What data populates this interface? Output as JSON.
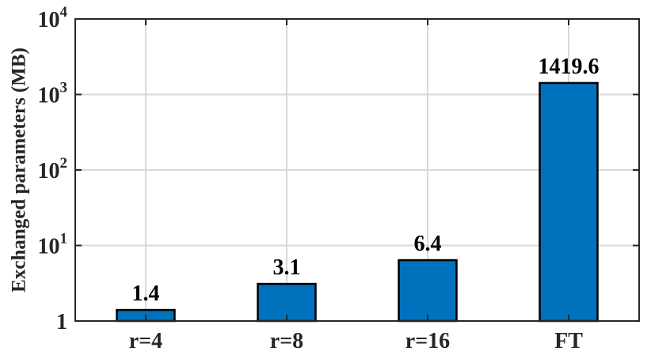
{
  "chart_data": {
    "type": "bar",
    "categories": [
      "r=4",
      "r=8",
      "r=16",
      "FT"
    ],
    "values": [
      1.4,
      3.1,
      6.4,
      1419.6
    ],
    "data_labels": [
      "1.4",
      "3.1",
      "6.4",
      "1419.6"
    ],
    "title": "",
    "xlabel": "",
    "ylabel": "Exchanged parameters (MB)",
    "yscale": "log",
    "ylim": [
      1,
      10000
    ],
    "y_ticks": [
      {
        "value": 1,
        "base": "1",
        "exp": ""
      },
      {
        "value": 10,
        "base": "10",
        "exp": "1"
      },
      {
        "value": 100,
        "base": "10",
        "exp": "2"
      },
      {
        "value": 1000,
        "base": "10",
        "exp": "3"
      },
      {
        "value": 10000,
        "base": "10",
        "exp": "4"
      }
    ],
    "grid": true,
    "legend": "none",
    "bar_color": "#0072BD",
    "edge_color": "#000000",
    "grid_color": "#d9d9d9",
    "axis_color": "#262626"
  }
}
